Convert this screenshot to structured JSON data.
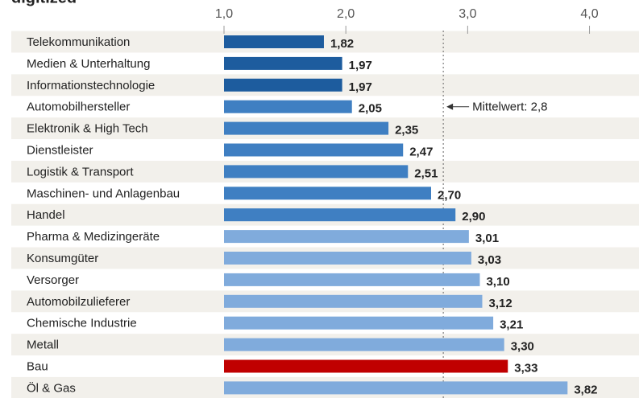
{
  "chart_data": {
    "type": "hbar",
    "title": "digitized",
    "categories": [
      "Telekommunikation",
      "Medien & Unterhaltung",
      "Informationstechnologie",
      "Automobilhersteller",
      "Elektronik & High Tech",
      "Dienstleister",
      "Logistik & Transport",
      "Maschinen- und Anlagenbau",
      "Handel",
      "Pharma & Medizingeräte",
      "Konsumgüter",
      "Versorger",
      "Automobilzulieferer",
      "Chemische Industrie",
      "Metall",
      "Bau",
      "Öl & Gas"
    ],
    "values": [
      1.82,
      1.97,
      1.97,
      2.05,
      2.35,
      2.47,
      2.51,
      2.7,
      2.9,
      3.01,
      3.03,
      3.1,
      3.12,
      3.21,
      3.3,
      3.33,
      3.82
    ],
    "value_labels": [
      "1,82",
      "1,97",
      "1,97",
      "2,05",
      "2,35",
      "2,47",
      "2,51",
      "2,70",
      "2,90",
      "3,01",
      "3,03",
      "3,10",
      "3,12",
      "3,21",
      "3,30",
      "3,33",
      "3,82"
    ],
    "colors": [
      "#1d5c9e",
      "#1d5c9e",
      "#1d5c9e",
      "#3f7fc2",
      "#3f7fc2",
      "#3f7fc2",
      "#3f7fc2",
      "#3f7fc2",
      "#3f7fc2",
      "#80abdc",
      "#80abdc",
      "#80abdc",
      "#80abdc",
      "#80abdc",
      "#80abdc",
      "#c00000",
      "#80abdc"
    ],
    "xlim": [
      1,
      4.4
    ],
    "xticks": [
      {
        "value": 1,
        "label": "1,0"
      },
      {
        "value": 2,
        "label": "2,0"
      },
      {
        "value": 3,
        "label": "3,0"
      },
      {
        "value": 4,
        "label": "4,0"
      }
    ],
    "mean": 2.8,
    "mean_label": "Mittelwert: 2,8"
  }
}
